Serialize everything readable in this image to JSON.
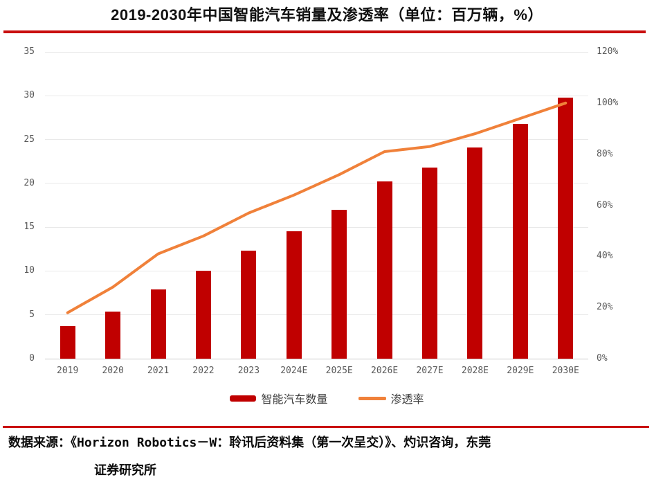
{
  "title": "2019-2030年中国智能汽车销量及渗透率（单位：百万辆，%）",
  "legend": {
    "bars_label": "智能汽车数量",
    "line_label": "渗透率"
  },
  "source": {
    "line1": "数据来源：《Horizon Robotics－W：聆讯后资料集（第一次呈交）》、灼识咨询，东莞",
    "line2": "证券研究所"
  },
  "colors": {
    "bar": "#c00000",
    "line": "#f0813a",
    "rule": "#c90f0f",
    "grid": "#e9e9e9",
    "axis_text": "#595959"
  },
  "chart_data": {
    "type": "bar",
    "title": "2019-2030年中国智能汽车销量及渗透率（单位：百万辆，%）",
    "categories": [
      "2019",
      "2020",
      "2021",
      "2022",
      "2023",
      "2024E",
      "2025E",
      "2026E",
      "2027E",
      "2028E",
      "2029E",
      "2030E"
    ],
    "series": [
      {
        "name": "智能汽车数量",
        "type": "bar",
        "axis": "left",
        "unit": "百万辆",
        "values": [
          3.7,
          5.4,
          7.9,
          10.0,
          12.3,
          14.5,
          17.0,
          20.2,
          21.8,
          24.1,
          26.8,
          29.8
        ]
      },
      {
        "name": "渗透率",
        "type": "line",
        "axis": "right",
        "unit": "%",
        "values": [
          18,
          28,
          41,
          48,
          57,
          64,
          72,
          81,
          83,
          88,
          94,
          100
        ]
      }
    ],
    "left_axis": {
      "min": 0,
      "max": 35,
      "step": 5,
      "ticks": [
        0,
        5,
        10,
        15,
        20,
        25,
        30,
        35
      ]
    },
    "right_axis": {
      "min": 0,
      "max": 120,
      "step": 20,
      "tick_labels": [
        "0%",
        "20%",
        "40%",
        "60%",
        "80%",
        "100%",
        "120%"
      ]
    },
    "grid": true,
    "legend_position": "bottom"
  }
}
